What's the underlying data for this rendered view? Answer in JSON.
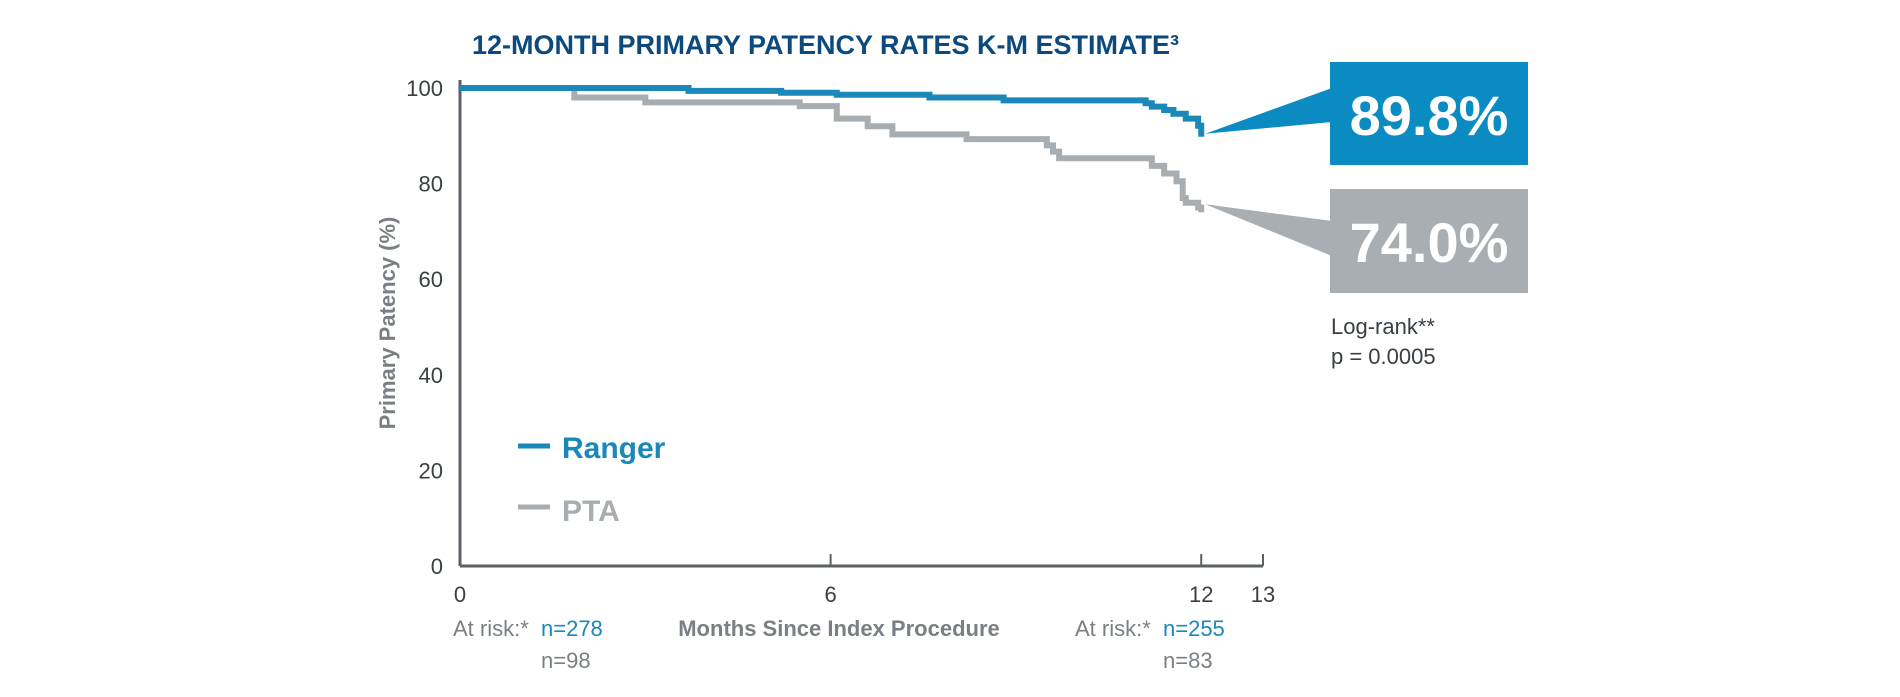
{
  "chart_data": {
    "type": "line",
    "title": "12-MONTH PRIMARY PATENCY RATES K-M ESTIMATE³",
    "xlabel": "Months Since Index Procedure",
    "ylabel": "Primary Patency (%)",
    "xlim": [
      0,
      13
    ],
    "ylim": [
      0,
      100
    ],
    "x_ticks": [
      {
        "value": 0,
        "label": "0"
      },
      {
        "value": 6,
        "label": "6"
      },
      {
        "value": 12,
        "label": "12"
      },
      {
        "value": 13,
        "label": "13"
      }
    ],
    "y_ticks": [
      {
        "value": 0,
        "label": "0"
      },
      {
        "value": 20,
        "label": "20"
      },
      {
        "value": 40,
        "label": "40"
      },
      {
        "value": 60,
        "label": "60"
      },
      {
        "value": 80,
        "label": "80"
      },
      {
        "value": 100,
        "label": "100"
      }
    ],
    "series": [
      {
        "name": "Ranger",
        "color": "#1a88b8",
        "x": [
          0,
          3.7,
          5.2,
          6.1,
          7.6,
          8.8,
          11.1,
          11.2,
          11.4,
          11.55,
          11.75,
          11.95,
          12.0
        ],
        "y": [
          100,
          99.4,
          99.0,
          98.6,
          98.0,
          97.4,
          96.8,
          96.1,
          95.4,
          94.6,
          93.6,
          92.1,
          89.8
        ]
      },
      {
        "name": "PTA",
        "color": "#a8adb2",
        "x": [
          0,
          1.85,
          3.0,
          5.5,
          6.1,
          6.6,
          7.0,
          8.2,
          9.5,
          9.6,
          9.7,
          11.2,
          11.4,
          11.6,
          11.7,
          11.75,
          11.95,
          12.0
        ],
        "y": [
          100,
          98.0,
          97.0,
          96.2,
          93.6,
          92.0,
          90.3,
          89.3,
          88.0,
          86.7,
          85.3,
          83.7,
          82.1,
          80.5,
          77.0,
          76.0,
          75.0,
          74.0
        ]
      }
    ],
    "legend": [
      {
        "name": "Ranger",
        "color": "#1a88b8"
      },
      {
        "name": "PTA",
        "color": "#a8adb2"
      }
    ],
    "legend_placement": "lower-left",
    "grid": false,
    "callouts": [
      {
        "series": "Ranger",
        "label": "89.8%",
        "color": "#0a8bc2",
        "value": 89.8
      },
      {
        "series": "PTA",
        "label": "74.0%",
        "color": "#a9aeb3",
        "value": 74.0
      }
    ],
    "log_rank": {
      "line1": "Log-rank**",
      "line2": "p = 0.0005"
    },
    "at_risk": {
      "start": {
        "label": "At risk:*",
        "ranger": "n=278",
        "pta": "n=98"
      },
      "end": {
        "label": "At risk:*",
        "ranger": "n=255",
        "pta": "n=83"
      }
    }
  }
}
